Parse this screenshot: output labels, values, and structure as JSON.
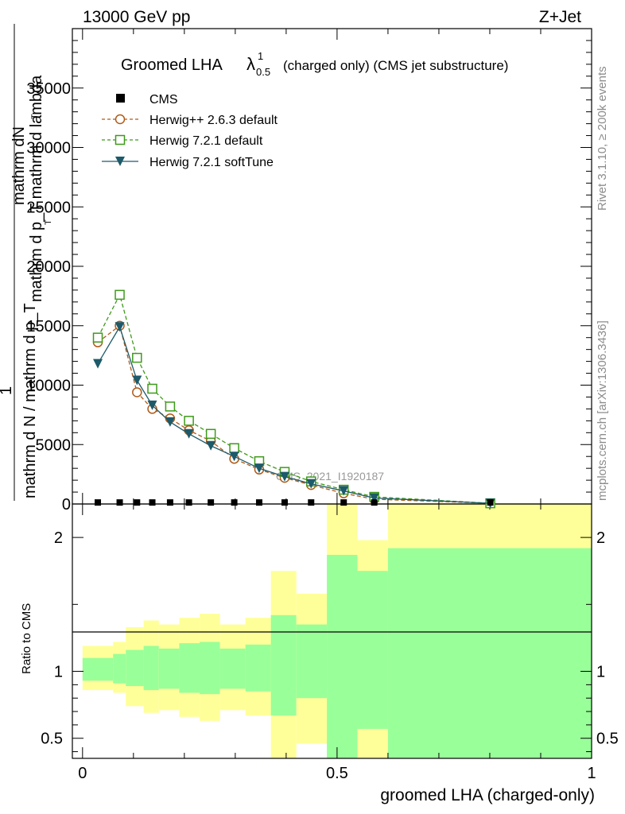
{
  "header": {
    "left": "13000 GeV pp",
    "right": "Z+Jet"
  },
  "side_labels": {
    "rivet": "Rivet 3.1.10, ≥ 200k events",
    "mcplots": "mcplots.cern.ch [arXiv:1306.3436]"
  },
  "chart_data": {
    "type": "line",
    "title": "Groomed LHA",
    "title_symbol": "λ",
    "title_sup": "1",
    "title_sub": "0.5",
    "title_suffix": "(charged only) (CMS jet substructure)",
    "watermark": "CMS_2021_I1920187",
    "ylabel_lines": [
      "mathrm dN",
      "mathrm d p_T mathrm d lambda",
      "1",
      "mathrm d N / mathrm d p_T"
    ],
    "ylabel_subs": [
      "T",
      "T"
    ],
    "xlabel": "groomed LHA (charged-only)",
    "ratio_ylabel": "Ratio to CMS",
    "xlim": [
      -0.02,
      1.0
    ],
    "ylim": [
      0,
      40000
    ],
    "ratio_ylim": [
      0.35,
      2.25
    ],
    "x_ticks": [
      0,
      0.5,
      1
    ],
    "x_tick_labels": [
      "0",
      "0.5",
      "1"
    ],
    "y_ticks": [
      0,
      5000,
      10000,
      15000,
      20000,
      25000,
      30000,
      35000
    ],
    "y_tick_labels": [
      "0",
      "5000",
      "10000",
      "15000",
      "20000",
      "25000",
      "30000",
      "35000"
    ],
    "ratio_ticks": [
      0.5,
      1,
      2
    ],
    "ratio_tick_labels": [
      "0.5",
      "1",
      "2"
    ],
    "legend": [
      "CMS",
      "Herwig++ 2.6.3 default",
      "Herwig 7.2.1 default",
      "Herwig 7.2.1 softTune"
    ],
    "cms": {
      "name": "CMS",
      "x": [
        0.03,
        0.073,
        0.107,
        0.137,
        0.172,
        0.209,
        0.252,
        0.298,
        0.347,
        0.397,
        0.449,
        0.513,
        0.573,
        0.801
      ],
      "y": [
        60,
        60,
        60,
        60,
        60,
        60,
        60,
        60,
        60,
        60,
        60,
        60,
        60,
        60
      ]
    },
    "series": [
      {
        "name": "Herwig++ 2.6.3 default",
        "color": "#b05a17",
        "marker": "circle",
        "dashed": true,
        "x": [
          0.03,
          0.073,
          0.107,
          0.137,
          0.172,
          0.209,
          0.252,
          0.298,
          0.347,
          0.397,
          0.449,
          0.513,
          0.573,
          0.801
        ],
        "y": [
          13600,
          15000,
          9400,
          8000,
          7200,
          6200,
          5300,
          3800,
          2900,
          2200,
          1600,
          900,
          400,
          60
        ]
      },
      {
        "name": "Herwig 7.2.1 default",
        "color": "#3e9a1a",
        "marker": "square",
        "dashed": true,
        "x": [
          0.03,
          0.073,
          0.107,
          0.137,
          0.172,
          0.209,
          0.252,
          0.298,
          0.347,
          0.397,
          0.449,
          0.513,
          0.573,
          0.801
        ],
        "y": [
          14000,
          17600,
          12300,
          9700,
          8200,
          7000,
          5900,
          4700,
          3600,
          2700,
          1900,
          1200,
          600,
          60
        ]
      },
      {
        "name": "Herwig 7.2.1 softTune",
        "color": "#1d5a6a",
        "marker": "triangle-down",
        "dashed": false,
        "x": [
          0.03,
          0.073,
          0.107,
          0.137,
          0.172,
          0.209,
          0.252,
          0.298,
          0.347,
          0.397,
          0.449,
          0.513,
          0.573,
          0.801
        ],
        "y": [
          11800,
          14900,
          10400,
          8300,
          6900,
          5900,
          4900,
          4000,
          3000,
          2300,
          1700,
          1100,
          500,
          60
        ]
      }
    ],
    "ratio_bands": [
      {
        "x0": 0.0,
        "x1": 0.06,
        "yellow": [
          0.86,
          1.19
        ],
        "green": [
          0.93,
          1.1
        ]
      },
      {
        "x0": 0.06,
        "x1": 0.085,
        "yellow": [
          0.84,
          1.22
        ],
        "green": [
          0.91,
          1.13
        ]
      },
      {
        "x0": 0.085,
        "x1": 0.12,
        "yellow": [
          0.74,
          1.33
        ],
        "green": [
          0.89,
          1.16
        ]
      },
      {
        "x0": 0.12,
        "x1": 0.15,
        "yellow": [
          0.69,
          1.38
        ],
        "green": [
          0.86,
          1.19
        ]
      },
      {
        "x0": 0.15,
        "x1": 0.19,
        "yellow": [
          0.71,
          1.35
        ],
        "green": [
          0.87,
          1.17
        ]
      },
      {
        "x0": 0.19,
        "x1": 0.23,
        "yellow": [
          0.66,
          1.4
        ],
        "green": [
          0.84,
          1.21
        ]
      },
      {
        "x0": 0.23,
        "x1": 0.27,
        "yellow": [
          0.63,
          1.43
        ],
        "green": [
          0.83,
          1.22
        ]
      },
      {
        "x0": 0.27,
        "x1": 0.32,
        "yellow": [
          0.71,
          1.35
        ],
        "green": [
          0.87,
          1.17
        ]
      },
      {
        "x0": 0.32,
        "x1": 0.37,
        "yellow": [
          0.67,
          1.4
        ],
        "green": [
          0.85,
          1.2
        ]
      },
      {
        "x0": 0.37,
        "x1": 0.42,
        "yellow": [
          0.35,
          1.75
        ],
        "green": [
          0.67,
          1.42
        ]
      },
      {
        "x0": 0.42,
        "x1": 0.48,
        "yellow": [
          0.46,
          1.58
        ],
        "green": [
          0.8,
          1.35
        ]
      },
      {
        "x0": 0.48,
        "x1": 0.54,
        "yellow": [
          0.35,
          2.25
        ],
        "green": [
          0.35,
          1.87
        ]
      },
      {
        "x0": 0.54,
        "x1": 0.6,
        "yellow": [
          0.35,
          1.98
        ],
        "green": [
          0.57,
          1.75
        ]
      },
      {
        "x0": 0.6,
        "x1": 1.0,
        "yellow": [
          0.35,
          2.25
        ],
        "green": [
          0.35,
          1.92
        ]
      }
    ]
  }
}
